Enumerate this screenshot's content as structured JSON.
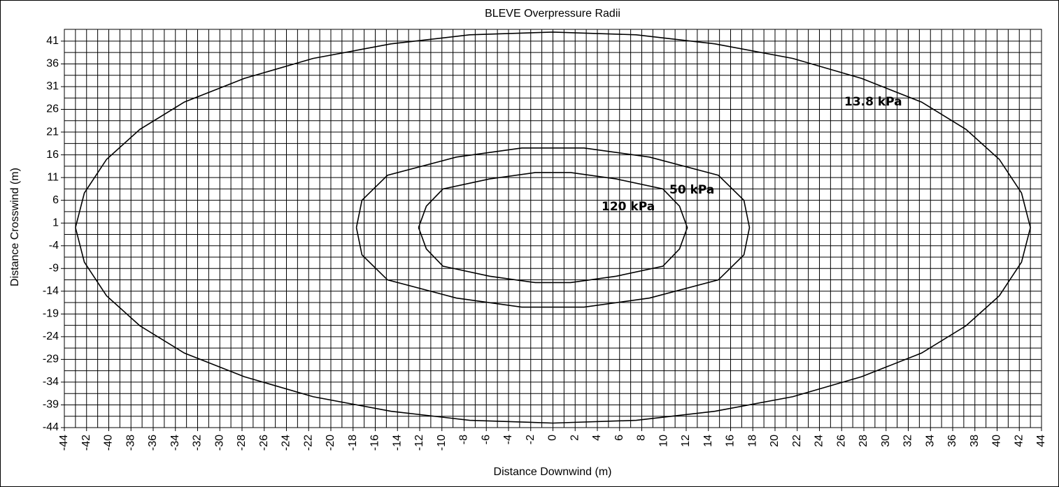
{
  "chart_data": {
    "type": "line",
    "title": "BLEVE Overpressure Radii",
    "x_label": "Distance Downwind (m)",
    "y_label": "Distance Crosswind (m)",
    "xlim": [
      -44,
      44
    ],
    "ylim": [
      -44,
      43.6
    ],
    "xticks": [
      -44,
      -42,
      -40,
      -38,
      -36,
      -34,
      -32,
      -30,
      -28,
      -26,
      -24,
      -22,
      -20,
      -18,
      -16,
      -14,
      -12,
      -10,
      -8,
      -6,
      -4,
      -2,
      0,
      2,
      4,
      6,
      8,
      10,
      12,
      14,
      16,
      18,
      20,
      22,
      24,
      26,
      28,
      30,
      32,
      34,
      36,
      38,
      40,
      42,
      44
    ],
    "yticks": [
      -44,
      -39,
      -34,
      -29,
      -24,
      -19,
      -14,
      -9,
      -4,
      1,
      6,
      11,
      16,
      21,
      26,
      31,
      36,
      41
    ],
    "minor_xgrid": [
      -43,
      -41,
      -39,
      -37,
      -35,
      -33,
      -31,
      -29,
      -27,
      -25,
      -23,
      -21,
      -19,
      -17,
      -15,
      -13,
      -11,
      -9,
      -7,
      -5,
      -3,
      -1,
      1,
      3,
      5,
      7,
      9,
      11,
      13,
      15,
      17,
      19,
      21,
      23,
      25,
      27,
      29,
      31,
      33,
      35,
      37,
      39,
      41,
      43
    ],
    "minor_ygrid": [
      -41.5,
      -36.5,
      -31.5,
      -26.5,
      -21.5,
      -16.5,
      -11.5,
      -6.5,
      -1.5,
      3.5,
      8.5,
      13.5,
      18.5,
      23.5,
      28.5,
      33.5,
      38.5
    ],
    "grid": true,
    "series": [
      {
        "name": "13.8 kPa",
        "color": "#000000",
        "x": [
          -43,
          -42.2,
          -40.2,
          -37.2,
          -33.2,
          -27.8,
          -21.6,
          -14.6,
          -7.5,
          0,
          7.5,
          14.6,
          21.6,
          27.8,
          33.2,
          37.2,
          40.2,
          42.2,
          43,
          42.2,
          40.2,
          37.2,
          33.2,
          27.8,
          21.6,
          14.6,
          7.5,
          0,
          -7.5,
          -14.6,
          -21.6,
          -27.8,
          -33.2,
          -37.2,
          -40.2,
          -42.2,
          -43
        ],
        "values": [
          0,
          7.6,
          15,
          21.6,
          27.6,
          32.8,
          37.2,
          40.4,
          42.4,
          43,
          42.4,
          40.4,
          37.2,
          32.8,
          27.6,
          21.6,
          15,
          7.6,
          0,
          -7.6,
          -15,
          -21.6,
          -27.6,
          -32.8,
          -37.2,
          -40.4,
          -42.4,
          -43,
          -42.4,
          -40.4,
          -37.2,
          -32.8,
          -27.6,
          -21.6,
          -15,
          -7.6,
          0
        ]
      },
      {
        "name": "50 kPa",
        "color": "#000000",
        "x": [
          -17.7,
          -17.2,
          -14.9,
          -8.7,
          -2.8,
          2.8,
          8.7,
          14.9,
          17.2,
          17.7,
          17.2,
          14.9,
          8.7,
          2.8,
          -2.8,
          -8.7,
          -14.9,
          -17.2,
          -17.7
        ],
        "values": [
          0,
          6,
          11.5,
          15.5,
          17.5,
          17.5,
          15.5,
          11.5,
          6,
          0,
          -6,
          -11.5,
          -15.5,
          -17.5,
          -17.5,
          -15.5,
          -11.5,
          -6,
          0
        ]
      },
      {
        "name": "120 kPa",
        "color": "#000000",
        "x": [
          -12.1,
          -11.4,
          -9.9,
          -5.7,
          -1.6,
          1.6,
          5.7,
          9.9,
          11.4,
          12.1,
          11.4,
          9.9,
          5.7,
          1.6,
          -1.6,
          -5.7,
          -9.9,
          -11.4,
          -12.1
        ],
        "values": [
          0,
          4.7,
          8.5,
          10.7,
          12.1,
          12.1,
          10.7,
          8.5,
          4.7,
          0,
          -4.7,
          -8.5,
          -10.7,
          -12.1,
          -12.1,
          -10.7,
          -8.5,
          -4.7,
          0
        ]
      }
    ]
  }
}
